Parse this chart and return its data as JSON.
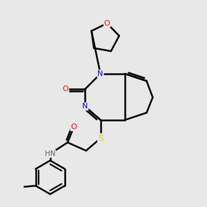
{
  "background_color": "#e8e8e8",
  "atom_colors": {
    "C": "#000000",
    "N": "#0000ff",
    "O": "#ff0000",
    "S": "#cccc00",
    "H": "#606060"
  },
  "bond_color": "#000000",
  "bond_width": 1.8,
  "figsize": [
    3.0,
    3.0
  ],
  "dpi": 100
}
